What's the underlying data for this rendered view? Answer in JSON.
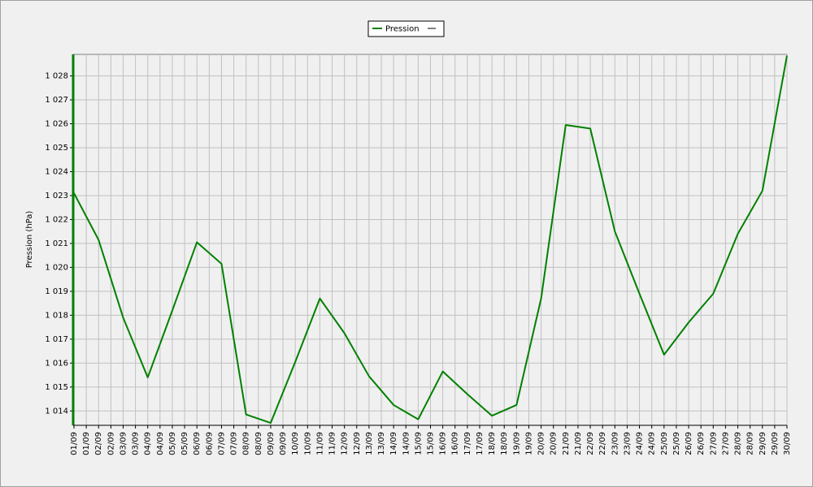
{
  "chart_data": {
    "type": "line",
    "legend": "Pression",
    "ylabel": "Pression (hPa)",
    "series": [
      {
        "name": "Pression",
        "color": "#008000",
        "values": [
          1023.1,
          1021.15,
          1017.9,
          1015.4,
          1018.2,
          1021.05,
          1020.15,
          1013.85,
          1013.5,
          1016.05,
          1018.7,
          1017.25,
          1015.45,
          1014.25,
          1013.65,
          1015.65,
          1014.7,
          1013.8,
          1014.25,
          1018.7,
          1025.95,
          1025.8,
          1021.5,
          1018.9,
          1016.35,
          1017.7,
          1018.9,
          1021.4,
          1023.2,
          1028.85
        ]
      }
    ],
    "xlim": [
      0,
      29
    ],
    "xticks": [
      {
        "value": 0,
        "label": "01/09"
      },
      {
        "value": 0.5,
        "label": "01/09"
      },
      {
        "value": 1,
        "label": "02/09"
      },
      {
        "value": 1.5,
        "label": "02/09"
      },
      {
        "value": 2,
        "label": "03/09"
      },
      {
        "value": 2.5,
        "label": "03/09"
      },
      {
        "value": 3,
        "label": "04/09"
      },
      {
        "value": 3.5,
        "label": "04/09"
      },
      {
        "value": 4,
        "label": "05/09"
      },
      {
        "value": 4.5,
        "label": "05/09"
      },
      {
        "value": 5,
        "label": "06/09"
      },
      {
        "value": 5.5,
        "label": "06/09"
      },
      {
        "value": 6,
        "label": "07/09"
      },
      {
        "value": 6.5,
        "label": "07/09"
      },
      {
        "value": 7,
        "label": "08/09"
      },
      {
        "value": 7.5,
        "label": "08/09"
      },
      {
        "value": 8,
        "label": "09/09"
      },
      {
        "value": 8.5,
        "label": "09/09"
      },
      {
        "value": 9,
        "label": "10/09"
      },
      {
        "value": 9.5,
        "label": "10/09"
      },
      {
        "value": 10,
        "label": "11/09"
      },
      {
        "value": 10.5,
        "label": "11/09"
      },
      {
        "value": 11,
        "label": "12/09"
      },
      {
        "value": 11.5,
        "label": "12/09"
      },
      {
        "value": 12,
        "label": "13/09"
      },
      {
        "value": 12.5,
        "label": "13/09"
      },
      {
        "value": 13,
        "label": "14/09"
      },
      {
        "value": 13.5,
        "label": "14/09"
      },
      {
        "value": 14,
        "label": "15/09"
      },
      {
        "value": 14.5,
        "label": "15/09"
      },
      {
        "value": 15,
        "label": "16/09"
      },
      {
        "value": 15.5,
        "label": "16/09"
      },
      {
        "value": 16,
        "label": "17/09"
      },
      {
        "value": 16.5,
        "label": "17/09"
      },
      {
        "value": 17,
        "label": "18/09"
      },
      {
        "value": 17.5,
        "label": "18/09"
      },
      {
        "value": 18,
        "label": "19/09"
      },
      {
        "value": 18.5,
        "label": "19/09"
      },
      {
        "value": 19,
        "label": "20/09"
      },
      {
        "value": 19.5,
        "label": "20/09"
      },
      {
        "value": 20,
        "label": "21/09"
      },
      {
        "value": 20.5,
        "label": "21/09"
      },
      {
        "value": 21,
        "label": "22/09"
      },
      {
        "value": 21.5,
        "label": "22/09"
      },
      {
        "value": 22,
        "label": "23/09"
      },
      {
        "value": 22.5,
        "label": "23/09"
      },
      {
        "value": 23,
        "label": "24/09"
      },
      {
        "value": 23.5,
        "label": "24/09"
      },
      {
        "value": 24,
        "label": "25/09"
      },
      {
        "value": 24.5,
        "label": "25/09"
      },
      {
        "value": 25,
        "label": "26/09"
      },
      {
        "value": 25.5,
        "label": "26/09"
      },
      {
        "value": 26,
        "label": "27/09"
      },
      {
        "value": 26.5,
        "label": "27/09"
      },
      {
        "value": 27,
        "label": "28/09"
      },
      {
        "value": 27.5,
        "label": "28/09"
      },
      {
        "value": 28,
        "label": "29/09"
      },
      {
        "value": 28.5,
        "label": "29/09"
      },
      {
        "value": 29,
        "label": "30/09"
      }
    ],
    "ylim": [
      1013.4,
      1028.9
    ],
    "yticks": [
      {
        "value": 1014,
        "label": "1 014"
      },
      {
        "value": 1015,
        "label": "1 015"
      },
      {
        "value": 1016,
        "label": "1 016"
      },
      {
        "value": 1017,
        "label": "1 017"
      },
      {
        "value": 1018,
        "label": "1 018"
      },
      {
        "value": 1019,
        "label": "1 019"
      },
      {
        "value": 1020,
        "label": "1 020"
      },
      {
        "value": 1021,
        "label": "1 021"
      },
      {
        "value": 1022,
        "label": "1 022"
      },
      {
        "value": 1023,
        "label": "1 023"
      },
      {
        "value": 1024,
        "label": "1 024"
      },
      {
        "value": 1025,
        "label": "1 025"
      },
      {
        "value": 1026,
        "label": "1 026"
      },
      {
        "value": 1027,
        "label": "1 027"
      },
      {
        "value": 1028,
        "label": "1 028"
      }
    ],
    "grid": true
  }
}
